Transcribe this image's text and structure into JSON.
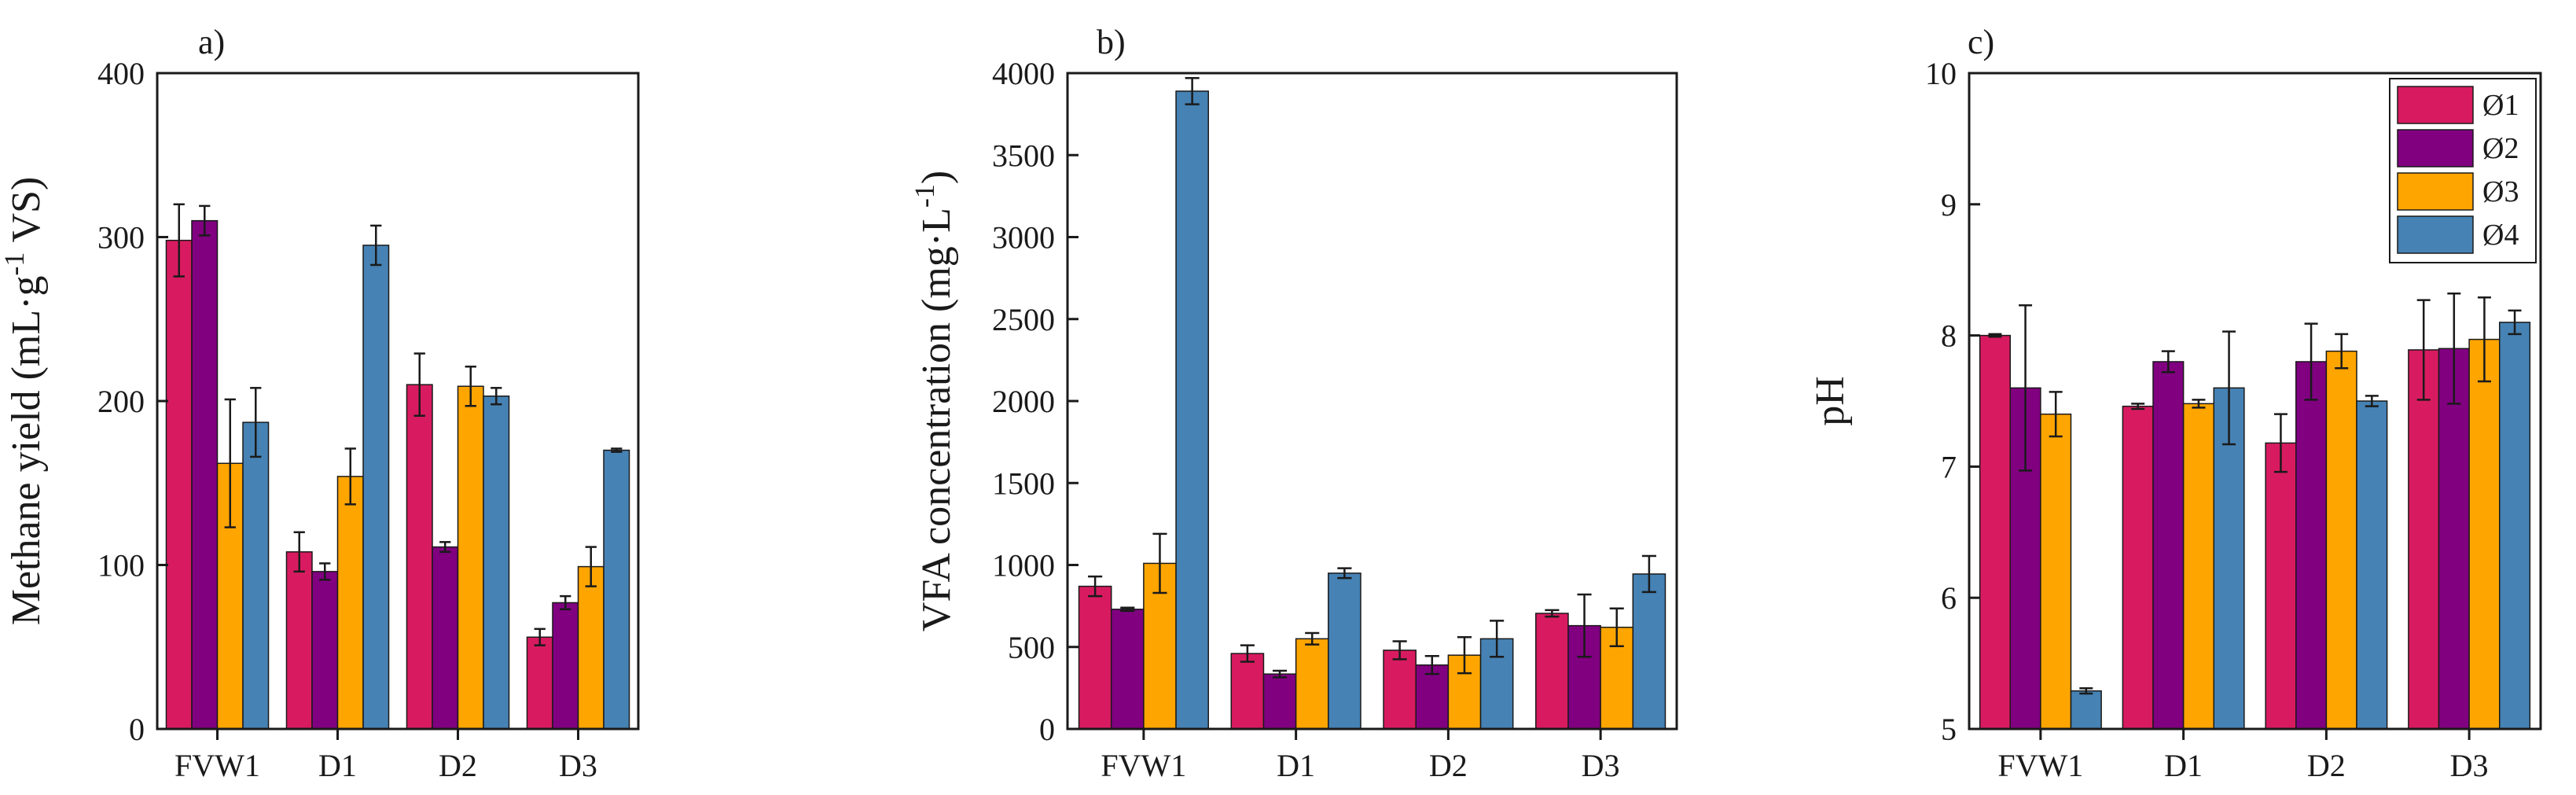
{
  "colors": {
    "series": [
      "#d81b60",
      "#800080",
      "#ffa500",
      "#4682b4"
    ],
    "axis": "#1a1a1a"
  },
  "legend": {
    "entries": [
      "Ø1",
      "Ø2",
      "Ø3",
      "Ø4"
    ],
    "placement": "top-right of panel c"
  },
  "chart_data": [
    {
      "type": "bar",
      "panel_label": "a)",
      "title": "",
      "xlabel": "",
      "ylabel_main": "Methane yield (mL·g",
      "ylabel_sup": "-1",
      "ylabel_tail": " VS)",
      "categories": [
        "FVW1",
        "D1",
        "D2",
        "D3"
      ],
      "ylim": [
        0,
        400
      ],
      "yticks": [
        0,
        100,
        200,
        300,
        400
      ],
      "series": [
        {
          "name": "Ø1",
          "values": [
            298,
            108,
            210,
            56
          ],
          "errors": [
            22,
            12,
            19,
            5
          ]
        },
        {
          "name": "Ø2",
          "values": [
            310,
            96,
            111,
            77
          ],
          "errors": [
            9,
            5,
            3,
            4
          ]
        },
        {
          "name": "Ø3",
          "values": [
            162,
            154,
            209,
            99
          ],
          "errors": [
            39,
            17,
            12,
            12
          ]
        },
        {
          "name": "Ø4",
          "values": [
            187,
            295,
            203,
            170
          ],
          "errors": [
            21,
            12,
            5,
            1
          ]
        }
      ]
    },
    {
      "type": "bar",
      "panel_label": "b)",
      "title": "",
      "xlabel": "",
      "ylabel_main": "VFA concentration (mg·L",
      "ylabel_sup": "-1",
      "ylabel_tail": ")",
      "categories": [
        "FVW1",
        "D1",
        "D2",
        "D3"
      ],
      "ylim": [
        0,
        4000
      ],
      "yticks": [
        0,
        500,
        1000,
        1500,
        2000,
        2500,
        3000,
        3500,
        4000
      ],
      "series": [
        {
          "name": "Ø1",
          "values": [
            870,
            460,
            480,
            705
          ],
          "errors": [
            60,
            50,
            55,
            20
          ]
        },
        {
          "name": "Ø2",
          "values": [
            730,
            335,
            390,
            630
          ],
          "errors": [
            10,
            20,
            55,
            190
          ]
        },
        {
          "name": "Ø3",
          "values": [
            1010,
            550,
            450,
            620
          ],
          "errors": [
            180,
            35,
            110,
            115
          ]
        },
        {
          "name": "Ø4",
          "values": [
            3890,
            950,
            550,
            945
          ],
          "errors": [
            80,
            30,
            110,
            110
          ]
        }
      ]
    },
    {
      "type": "bar",
      "panel_label": "c)",
      "title": "",
      "xlabel": "",
      "ylabel_main": "pH",
      "ylabel_sup": "",
      "ylabel_tail": "",
      "categories": [
        "FVW1",
        "D1",
        "D2",
        "D3"
      ],
      "ylim": [
        5,
        10
      ],
      "yticks": [
        5,
        6,
        7,
        8,
        9,
        10
      ],
      "series": [
        {
          "name": "Ø1",
          "values": [
            8.0,
            7.46,
            7.18,
            7.89
          ],
          "errors": [
            0.01,
            0.02,
            0.22,
            0.38
          ]
        },
        {
          "name": "Ø2",
          "values": [
            7.6,
            7.8,
            7.8,
            7.9
          ],
          "errors": [
            0.63,
            0.08,
            0.29,
            0.42
          ]
        },
        {
          "name": "Ø3",
          "values": [
            7.4,
            7.48,
            7.88,
            7.97
          ],
          "errors": [
            0.17,
            0.03,
            0.13,
            0.32
          ]
        },
        {
          "name": "Ø4",
          "values": [
            5.29,
            7.6,
            7.5,
            8.1
          ],
          "errors": [
            0.02,
            0.43,
            0.04,
            0.09
          ]
        }
      ]
    }
  ]
}
